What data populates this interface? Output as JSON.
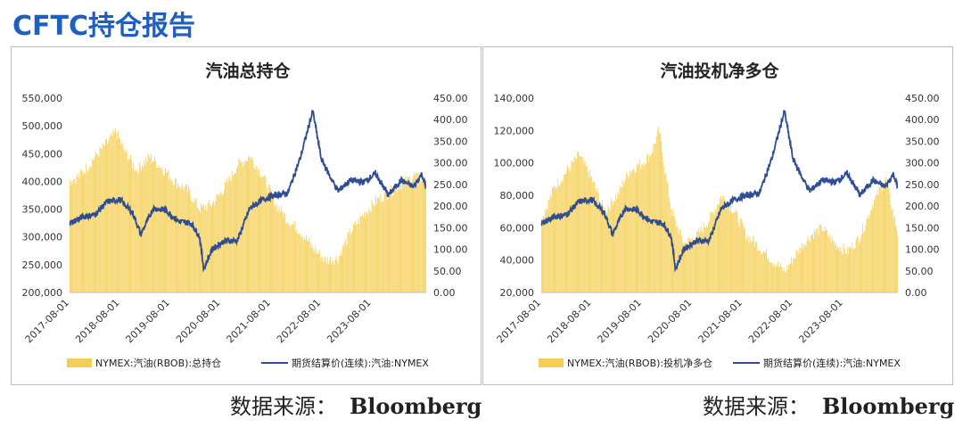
{
  "header": {
    "title": "CFTC持仓报告"
  },
  "source": {
    "label": "数据来源：",
    "value": "Bloomberg"
  },
  "colors": {
    "bar": "#F5CF55",
    "line": "#2E4D92",
    "title_blue": "#1F5FBF"
  },
  "chart_data": [
    {
      "type": "bar+line",
      "title": "汽油总持仓",
      "x_tick_labels": [
        "2017-08-01",
        "2018-08-01",
        "2019-08-01",
        "2020-08-01",
        "2021-08-01",
        "2022-08-01",
        "2023-08-01"
      ],
      "x_start": "2017-08-01",
      "x_end": "2024-09-01",
      "y_left": {
        "min": 200000,
        "max": 550000,
        "ticks": [
          "550,000",
          "500,000",
          "450,000",
          "400,000",
          "350,000",
          "300,000",
          "250,000",
          "200,000"
        ]
      },
      "y_right": {
        "min": 0,
        "max": 450,
        "ticks": [
          "450.00",
          "400.00",
          "350.00",
          "300.00",
          "250.00",
          "200.00",
          "150.00",
          "100.00",
          "50.00",
          "0.00"
        ]
      },
      "series": [
        {
          "name": "NYMEX:汽油(RBOB):总持仓",
          "type": "bar",
          "axis": "left",
          "points": [
            [
              "2017-08-01",
              400000
            ],
            [
              "2017-11-01",
              415000
            ],
            [
              "2018-02-01",
              445000
            ],
            [
              "2018-05-01",
              470000
            ],
            [
              "2018-07-01",
              490000
            ],
            [
              "2018-09-01",
              455000
            ],
            [
              "2018-12-01",
              420000
            ],
            [
              "2019-03-01",
              445000
            ],
            [
              "2019-06-01",
              425000
            ],
            [
              "2019-09-01",
              400000
            ],
            [
              "2019-12-01",
              385000
            ],
            [
              "2020-03-01",
              350000
            ],
            [
              "2020-06-01",
              360000
            ],
            [
              "2020-09-01",
              390000
            ],
            [
              "2020-12-01",
              430000
            ],
            [
              "2021-03-01",
              445000
            ],
            [
              "2021-06-01",
              410000
            ],
            [
              "2021-09-01",
              360000
            ],
            [
              "2021-12-01",
              330000
            ],
            [
              "2022-03-01",
              310000
            ],
            [
              "2022-06-01",
              280000
            ],
            [
              "2022-09-01",
              258000
            ],
            [
              "2022-12-01",
              262000
            ],
            [
              "2023-03-01",
              310000
            ],
            [
              "2023-06-01",
              340000
            ],
            [
              "2023-09-01",
              365000
            ],
            [
              "2023-12-01",
              380000
            ],
            [
              "2024-03-01",
              395000
            ],
            [
              "2024-06-01",
              410000
            ],
            [
              "2024-09-01",
              400000
            ]
          ]
        },
        {
          "name": "期货结算价(连续):汽油:NYMEX",
          "type": "line",
          "axis": "right",
          "points": [
            [
              "2017-08-01",
              160
            ],
            [
              "2017-11-01",
              175
            ],
            [
              "2018-02-01",
              180
            ],
            [
              "2018-05-01",
              210
            ],
            [
              "2018-08-01",
              215
            ],
            [
              "2018-11-01",
              185
            ],
            [
              "2019-01-01",
              135
            ],
            [
              "2019-04-01",
              195
            ],
            [
              "2019-07-01",
              190
            ],
            [
              "2019-10-01",
              165
            ],
            [
              "2020-01-01",
              160
            ],
            [
              "2020-03-01",
              130
            ],
            [
              "2020-04-01",
              55
            ],
            [
              "2020-06-01",
              100
            ],
            [
              "2020-09-01",
              120
            ],
            [
              "2020-12-01",
              120
            ],
            [
              "2021-03-01",
              195
            ],
            [
              "2021-06-01",
              215
            ],
            [
              "2021-09-01",
              225
            ],
            [
              "2021-12-01",
              230
            ],
            [
              "2022-03-01",
              310
            ],
            [
              "2022-06-01",
              420
            ],
            [
              "2022-08-01",
              310
            ],
            [
              "2022-10-01",
              270
            ],
            [
              "2022-12-01",
              235
            ],
            [
              "2023-03-01",
              260
            ],
            [
              "2023-06-01",
              255
            ],
            [
              "2023-09-01",
              275
            ],
            [
              "2023-12-01",
              225
            ],
            [
              "2024-03-01",
              260
            ],
            [
              "2024-06-01",
              245
            ],
            [
              "2024-08-01",
              275
            ],
            [
              "2024-09-01",
              240
            ]
          ]
        }
      ],
      "legend_position": "bottom"
    },
    {
      "type": "bar+line",
      "title": "汽油投机净多仓",
      "x_tick_labels": [
        "2017-08-01",
        "2018-08-01",
        "2019-08-01",
        "2020-08-01",
        "2021-08-01",
        "2022-08-01",
        "2023-08-01"
      ],
      "x_start": "2017-08-01",
      "x_end": "2024-09-01",
      "y_left": {
        "min": 20000,
        "max": 140000,
        "ticks": [
          "140,000",
          "120,000",
          "100,000",
          "80,000",
          "60,000",
          "40,000",
          "20,000"
        ]
      },
      "y_right": {
        "min": 0,
        "max": 450,
        "ticks": [
          "450.00",
          "400.00",
          "350.00",
          "300.00",
          "250.00",
          "200.00",
          "150.00",
          "100.00",
          "50.00",
          "0.00"
        ]
      },
      "series": [
        {
          "name": "NYMEX:汽油(RBOB):投机净多仓",
          "type": "bar",
          "axis": "left",
          "points": [
            [
              "2017-08-01",
              65000
            ],
            [
              "2017-11-01",
              85000
            ],
            [
              "2018-02-01",
              95000
            ],
            [
              "2018-05-01",
              105000
            ],
            [
              "2018-08-01",
              90000
            ],
            [
              "2018-11-01",
              70000
            ],
            [
              "2019-02-01",
              80000
            ],
            [
              "2019-05-01",
              95000
            ],
            [
              "2019-08-01",
              100000
            ],
            [
              "2019-10-01",
              105000
            ],
            [
              "2019-12-01",
              120000
            ],
            [
              "2020-03-01",
              70000
            ],
            [
              "2020-06-01",
              50000
            ],
            [
              "2020-09-01",
              55000
            ],
            [
              "2020-12-01",
              65000
            ],
            [
              "2021-03-01",
              80000
            ],
            [
              "2021-06-01",
              70000
            ],
            [
              "2021-09-01",
              55000
            ],
            [
              "2021-12-01",
              48000
            ],
            [
              "2022-03-01",
              40000
            ],
            [
              "2022-06-01",
              33000
            ],
            [
              "2022-09-01",
              45000
            ],
            [
              "2022-12-01",
              55000
            ],
            [
              "2023-03-01",
              60000
            ],
            [
              "2023-06-01",
              50000
            ],
            [
              "2023-09-01",
              45000
            ],
            [
              "2023-12-01",
              55000
            ],
            [
              "2024-03-01",
              75000
            ],
            [
              "2024-06-01",
              90000
            ],
            [
              "2024-09-01",
              55000
            ]
          ]
        },
        {
          "name": "期货结算价(连续):汽油:NYMEX",
          "type": "line",
          "axis": "right",
          "points": [
            [
              "2017-08-01",
              160
            ],
            [
              "2017-11-01",
              175
            ],
            [
              "2018-02-01",
              180
            ],
            [
              "2018-05-01",
              210
            ],
            [
              "2018-08-01",
              215
            ],
            [
              "2018-11-01",
              185
            ],
            [
              "2019-01-01",
              135
            ],
            [
              "2019-04-01",
              195
            ],
            [
              "2019-07-01",
              190
            ],
            [
              "2019-10-01",
              165
            ],
            [
              "2020-01-01",
              160
            ],
            [
              "2020-03-01",
              130
            ],
            [
              "2020-04-01",
              55
            ],
            [
              "2020-06-01",
              100
            ],
            [
              "2020-09-01",
              120
            ],
            [
              "2020-12-01",
              120
            ],
            [
              "2021-03-01",
              195
            ],
            [
              "2021-06-01",
              215
            ],
            [
              "2021-09-01",
              225
            ],
            [
              "2021-12-01",
              230
            ],
            [
              "2022-03-01",
              310
            ],
            [
              "2022-06-01",
              420
            ],
            [
              "2022-08-01",
              310
            ],
            [
              "2022-10-01",
              270
            ],
            [
              "2022-12-01",
              235
            ],
            [
              "2023-03-01",
              260
            ],
            [
              "2023-06-01",
              255
            ],
            [
              "2023-09-01",
              275
            ],
            [
              "2023-12-01",
              225
            ],
            [
              "2024-03-01",
              260
            ],
            [
              "2024-06-01",
              245
            ],
            [
              "2024-08-01",
              275
            ],
            [
              "2024-09-01",
              240
            ]
          ]
        }
      ],
      "legend_position": "bottom"
    }
  ]
}
